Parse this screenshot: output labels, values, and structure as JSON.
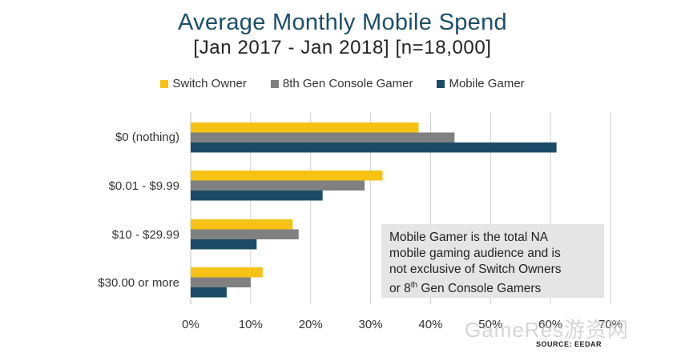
{
  "header": {
    "title": "Average Monthly Mobile Spend",
    "subtitle": "[Jan 2017 - Jan 2018] [n=18,000]"
  },
  "note": {
    "line1": "Mobile Gamer is the total NA",
    "line2": "mobile gaming audience and is",
    "line3": "not exclusive of Switch Owners",
    "line4_prefix": "or 8",
    "line4_sup": "th",
    "line4_suffix": " Gen Console Gamers"
  },
  "footer": {
    "source": "SOURCE: EEDAR",
    "watermark": "GameRes游资网"
  },
  "chart_data": {
    "type": "bar",
    "orientation": "horizontal",
    "title": "Average Monthly Mobile Spend",
    "subtitle": "[Jan 2017 - Jan 2018] [n=18,000]",
    "categories": [
      "$0 (nothing)",
      "$0.01 - $9.99",
      "$10 - $29.99",
      "$30.00 or more"
    ],
    "series": [
      {
        "name": "Switch Owner",
        "color": "#f6c216",
        "values": [
          38,
          32,
          17,
          12
        ]
      },
      {
        "name": "8th Gen Console Gamer",
        "color": "#808080",
        "values": [
          44,
          29,
          18,
          10
        ]
      },
      {
        "name": "Mobile Gamer",
        "color": "#1b4b66",
        "values": [
          61,
          22,
          11,
          6
        ]
      }
    ],
    "xlim": [
      0,
      70
    ],
    "xticks": [
      0,
      10,
      20,
      30,
      40,
      50,
      60,
      70
    ],
    "xtick_labels": [
      "0%",
      "10%",
      "20%",
      "30%",
      "40%",
      "50%",
      "60%",
      "70%"
    ],
    "xlabel": "",
    "ylabel": "",
    "grid": true,
    "legend_position": "top"
  }
}
